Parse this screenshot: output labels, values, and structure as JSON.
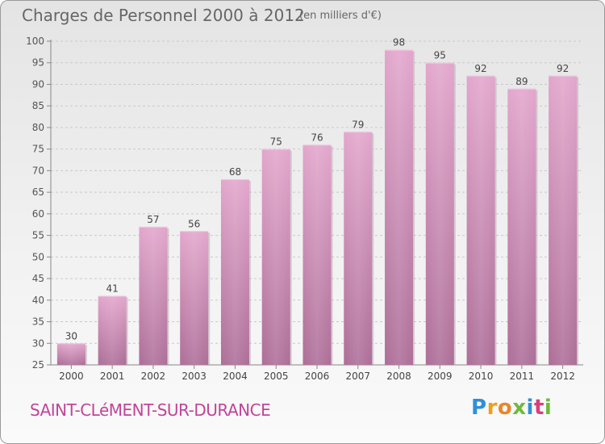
{
  "chart_data": {
    "type": "bar",
    "title": "Charges de Personnel 2000 à 2012",
    "subtitle": "(en milliers d'€)",
    "categories": [
      "2000",
      "2001",
      "2002",
      "2003",
      "2004",
      "2005",
      "2006",
      "2007",
      "2008",
      "2009",
      "2010",
      "2011",
      "2012"
    ],
    "values": [
      30,
      41,
      57,
      56,
      68,
      75,
      76,
      79,
      98,
      95,
      92,
      89,
      92
    ],
    "ylim": [
      25,
      100
    ],
    "yticks": [
      25,
      30,
      35,
      40,
      45,
      50,
      55,
      60,
      65,
      70,
      75,
      80,
      85,
      90,
      95,
      100
    ],
    "grid": "horizontal dashed",
    "bar_color": "#d78ebb"
  },
  "footer": {
    "commune": "SAINT-CLéMENT-SUR-DURANCE",
    "logo": "Proxiti"
  }
}
